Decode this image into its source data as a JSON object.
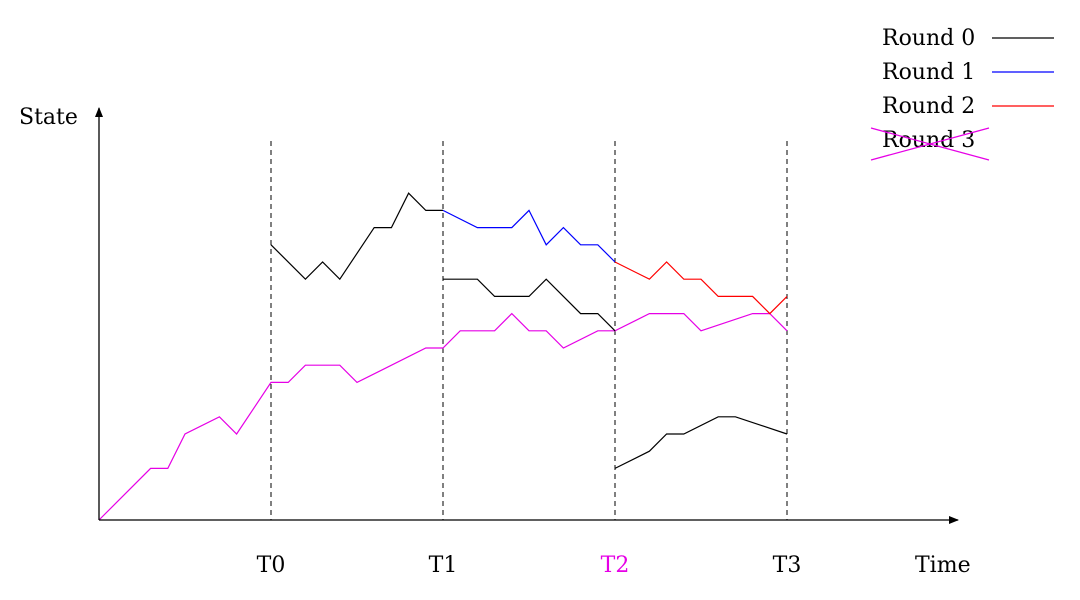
{
  "chart_data": {
    "type": "line",
    "ylabel": "State",
    "xlabel": "Time",
    "ticks": [
      {
        "label": "T0",
        "x": 10
      },
      {
        "label": "T1",
        "x": 20
      },
      {
        "label": "T2",
        "x": 30,
        "color": "#e600e6"
      },
      {
        "label": "T3",
        "x": 40
      }
    ],
    "xlim": [
      0,
      50
    ],
    "ylim": [
      0,
      24
    ],
    "legend": {
      "placement": "top-right",
      "items": [
        {
          "label": "Round 0",
          "color": "#000000",
          "crossed": false
        },
        {
          "label": "Round 1",
          "color": "#0000ff",
          "crossed": false
        },
        {
          "label": "Round 2",
          "color": "#ff0000",
          "crossed": false
        },
        {
          "label": "Round 3",
          "color": "#e600e6",
          "crossed": true
        }
      ]
    },
    "series": [
      {
        "color": "#e600e6",
        "points": [
          [
            0,
            0
          ],
          [
            3,
            3
          ],
          [
            4,
            3
          ],
          [
            5,
            5
          ],
          [
            7,
            6
          ],
          [
            8,
            5
          ],
          [
            10,
            8
          ],
          [
            11,
            8
          ],
          [
            12,
            9
          ],
          [
            14,
            9
          ],
          [
            15,
            8
          ],
          [
            19,
            10
          ],
          [
            20,
            10
          ],
          [
            21,
            11
          ],
          [
            23,
            11
          ],
          [
            24,
            12
          ],
          [
            25,
            11
          ],
          [
            26,
            11
          ],
          [
            27,
            10
          ],
          [
            29,
            11
          ],
          [
            30,
            11
          ],
          [
            32,
            12
          ],
          [
            34,
            12
          ],
          [
            35,
            11
          ],
          [
            38,
            12
          ],
          [
            39,
            12
          ],
          [
            40,
            11
          ]
        ]
      },
      {
        "color": "#000000",
        "points": [
          [
            10,
            16
          ],
          [
            12,
            14
          ],
          [
            13,
            15
          ],
          [
            14,
            14
          ],
          [
            16,
            17
          ],
          [
            17,
            17
          ],
          [
            18,
            19
          ],
          [
            19,
            18
          ],
          [
            20,
            18
          ]
        ]
      },
      {
        "color": "#0000ff",
        "points": [
          [
            20,
            18
          ],
          [
            22,
            17
          ],
          [
            24,
            17
          ],
          [
            25,
            18
          ],
          [
            26,
            16
          ],
          [
            27,
            17
          ],
          [
            28,
            16
          ],
          [
            29,
            16
          ],
          [
            30,
            15
          ]
        ]
      },
      {
        "color": "#000000",
        "points": [
          [
            20,
            14
          ],
          [
            22,
            14
          ],
          [
            23,
            13
          ],
          [
            25,
            13
          ],
          [
            26,
            14
          ],
          [
            28,
            12
          ],
          [
            29,
            12
          ],
          [
            30,
            11
          ]
        ]
      },
      {
        "color": "#ff0000",
        "points": [
          [
            30,
            15
          ],
          [
            32,
            14
          ],
          [
            33,
            15
          ],
          [
            34,
            14
          ],
          [
            35,
            14
          ],
          [
            36,
            13
          ],
          [
            38,
            13
          ],
          [
            39,
            12
          ],
          [
            40,
            13
          ]
        ]
      },
      {
        "color": "#000000",
        "points": [
          [
            30,
            3
          ],
          [
            32,
            4
          ],
          [
            33,
            5
          ],
          [
            34,
            5
          ],
          [
            36,
            6
          ],
          [
            37,
            6
          ],
          [
            40,
            5
          ]
        ]
      }
    ]
  }
}
